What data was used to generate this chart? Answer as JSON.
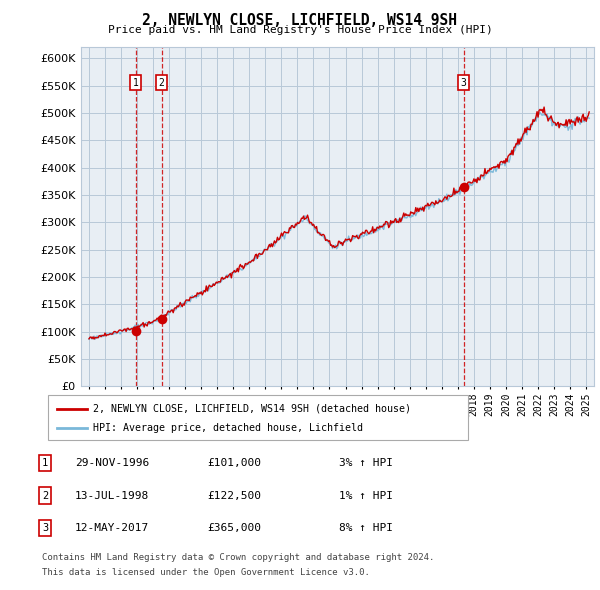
{
  "title": "2, NEWLYN CLOSE, LICHFIELD, WS14 9SH",
  "subtitle": "Price paid vs. HM Land Registry's House Price Index (HPI)",
  "ytick_values": [
    0,
    50000,
    100000,
    150000,
    200000,
    250000,
    300000,
    350000,
    400000,
    450000,
    500000,
    550000,
    600000
  ],
  "xlim_start": 1993.5,
  "xlim_end": 2025.5,
  "ylim_max": 620000,
  "ylim_min": 0,
  "sale_dates": [
    1996.91,
    1998.53,
    2017.36
  ],
  "sale_prices": [
    101000,
    122500,
    365000
  ],
  "sale_labels": [
    "1",
    "2",
    "3"
  ],
  "legend_line1": "2, NEWLYN CLOSE, LICHFIELD, WS14 9SH (detached house)",
  "legend_line2": "HPI: Average price, detached house, Lichfield",
  "table_rows": [
    {
      "num": "1",
      "date": "29-NOV-1996",
      "price": "£101,000",
      "change": "3% ↑ HPI"
    },
    {
      "num": "2",
      "date": "13-JUL-1998",
      "price": "£122,500",
      "change": "1% ↑ HPI"
    },
    {
      "num": "3",
      "date": "12-MAY-2017",
      "price": "£365,000",
      "change": "8% ↑ HPI"
    }
  ],
  "footer1": "Contains HM Land Registry data © Crown copyright and database right 2024.",
  "footer2": "This data is licensed under the Open Government Licence v3.0.",
  "hpi_color": "#7ab8d9",
  "price_color": "#cc0000",
  "bg_color": "#e8eef4",
  "grid_color": "#b8c8d8",
  "vline_color": "#cc0000",
  "fig_width": 6.0,
  "fig_height": 5.9
}
